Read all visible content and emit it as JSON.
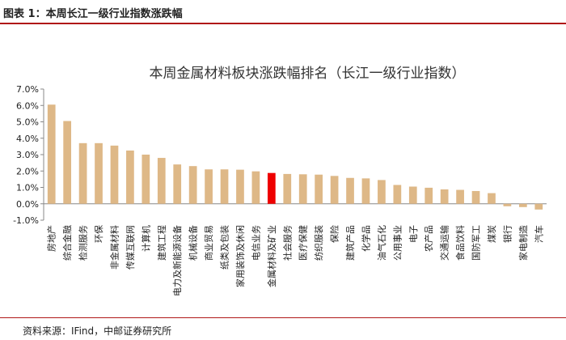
{
  "figure": {
    "label": "图表 1：本周长江一级行业指数涨跌幅",
    "source": "资料来源：IFind，中邮证券研究所"
  },
  "colors": {
    "bar": "#deb887",
    "highlight": "#ee0000",
    "rule": "#b01818",
    "axis": "#888888",
    "text": "#222222"
  },
  "chart_data": {
    "type": "bar",
    "title": "本周金属材料板块涨跌幅排名（长江一级行业指数）",
    "xlabel": "",
    "ylabel": "",
    "y_unit": "%",
    "ylim": [
      -1.0,
      7.0
    ],
    "yticks": [
      -1.0,
      0.0,
      1.0,
      2.0,
      3.0,
      4.0,
      5.0,
      6.0,
      7.0
    ],
    "ytick_labels": [
      "-1.0%",
      "0.0%",
      "1.0%",
      "2.0%",
      "3.0%",
      "4.0%",
      "5.0%",
      "6.0%",
      "7.0%"
    ],
    "grid": false,
    "highlight": "金属材料及矿业",
    "categories": [
      "房地产",
      "综合金融",
      "检测服务",
      "环保",
      "非金属材料",
      "传媒互联网",
      "计算机",
      "建筑工程",
      "电力及新能源设备",
      "机械设备",
      "商业贸易",
      "纸类及包装",
      "家用装饰及休闲",
      "电信业务",
      "金属材料及矿业",
      "社会服务",
      "医疗保健",
      "纺织服装",
      "保险",
      "建筑产品",
      "化学品",
      "油气石化",
      "公用事业",
      "电子",
      "农产品",
      "交通运输",
      "食品饮料",
      "国防军工",
      "煤炭",
      "银行",
      "家电制造",
      "汽车"
    ],
    "values": [
      6.05,
      5.05,
      3.7,
      3.7,
      3.55,
      3.25,
      3.0,
      2.8,
      2.4,
      2.3,
      2.1,
      2.1,
      2.08,
      1.98,
      1.88,
      1.82,
      1.8,
      1.78,
      1.7,
      1.58,
      1.55,
      1.45,
      1.15,
      1.05,
      0.98,
      0.88,
      0.85,
      0.78,
      0.65,
      -0.15,
      -0.2,
      -0.35
    ]
  }
}
